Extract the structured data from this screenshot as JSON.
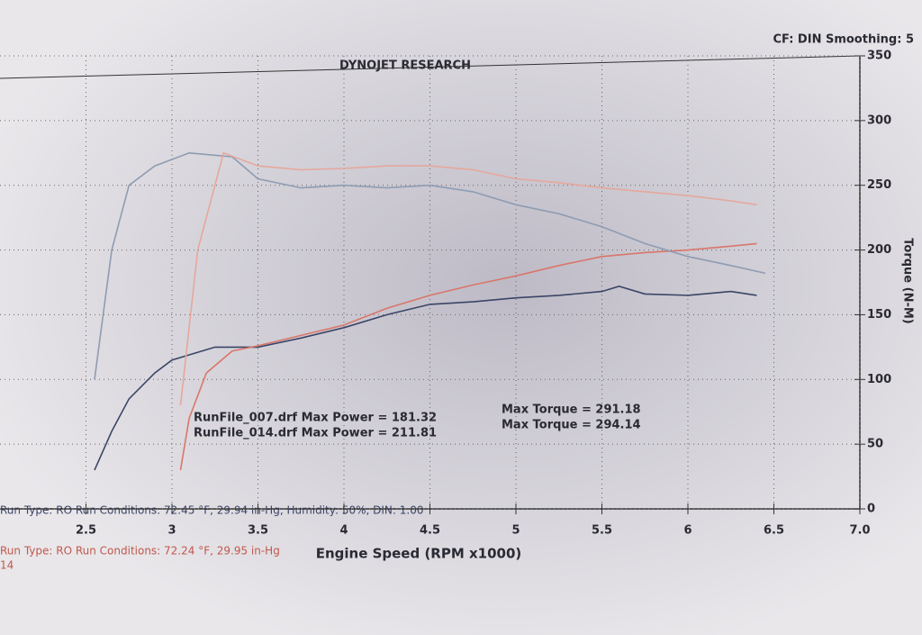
{
  "chart_data": {
    "type": "line",
    "title": "DYNOJET RESEARCH",
    "subtitle": "CF: DIN  Smoothing: 5",
    "y_label": "Torque (N-M)",
    "x_label": "Engine Speed (RPM x1000)",
    "xlim": [
      2.0,
      7.0
    ],
    "xticks": [
      2.5,
      3.0,
      3.5,
      4.0,
      4.5,
      5.0,
      5.5,
      6.0,
      6.5,
      {
        "value": 7.0,
        "label": "7.0"
      }
    ],
    "ylim": [
      0,
      350
    ],
    "yticks": [
      0,
      50,
      100,
      150,
      200,
      250,
      300,
      350
    ],
    "grid": true,
    "annotations": [
      "RunFile_007.drf Max Power = 181.32",
      "RunFile_014.drf Max Power = 211.81",
      "Max Torque = 291.18",
      "Max Torque = 294.14"
    ],
    "run_conditions": [
      "Run Type: RO  Run Conditions: 72.45 °F, 29.94 in-Hg, Humidity: 50%, DIN: 1.00",
      "Run Type: RO  Run Conditions: 72.24 °F, 29.95 in-Hg",
      "14"
    ],
    "series": [
      {
        "color": "#3a4566",
        "x": [
          2.55,
          2.65,
          2.75,
          2.9,
          3.0,
          3.25,
          3.5,
          3.75,
          4.0,
          4.25,
          4.5,
          4.75,
          5.0,
          5.25,
          5.5,
          5.6,
          5.75,
          6.0,
          6.25,
          6.4
        ],
        "values": [
          30,
          60,
          85,
          105,
          115,
          125,
          125,
          132,
          140,
          150,
          158,
          160,
          163,
          165,
          168,
          172,
          166,
          165,
          168,
          165
        ]
      },
      {
        "color": "#d9766a",
        "x": [
          3.05,
          3.1,
          3.2,
          3.35,
          3.5,
          3.75,
          4.0,
          4.25,
          4.5,
          4.75,
          5.0,
          5.25,
          5.5,
          5.75,
          6.0,
          6.25,
          6.4
        ],
        "values": [
          30,
          70,
          105,
          122,
          126,
          134,
          142,
          155,
          165,
          173,
          180,
          188,
          195,
          198,
          200,
          203,
          205
        ]
      },
      {
        "color": "#8e9cb2",
        "x": [
          2.55,
          2.65,
          2.75,
          2.9,
          3.1,
          3.35,
          3.5,
          3.75,
          4.0,
          4.25,
          4.5,
          4.75,
          5.0,
          5.25,
          5.5,
          5.75,
          6.0,
          6.25,
          6.45
        ],
        "values": [
          100,
          200,
          250,
          265,
          275,
          272,
          255,
          248,
          250,
          248,
          250,
          245,
          235,
          228,
          218,
          205,
          195,
          188,
          182
        ]
      },
      {
        "color": "#e6a79c",
        "x": [
          3.05,
          3.15,
          3.3,
          3.5,
          3.75,
          4.0,
          4.25,
          4.5,
          4.75,
          5.0,
          5.25,
          5.5,
          5.75,
          6.0,
          6.25,
          6.4
        ],
        "values": [
          80,
          200,
          275,
          265,
          262,
          263,
          265,
          265,
          262,
          255,
          252,
          248,
          245,
          242,
          238,
          235
        ]
      }
    ]
  }
}
